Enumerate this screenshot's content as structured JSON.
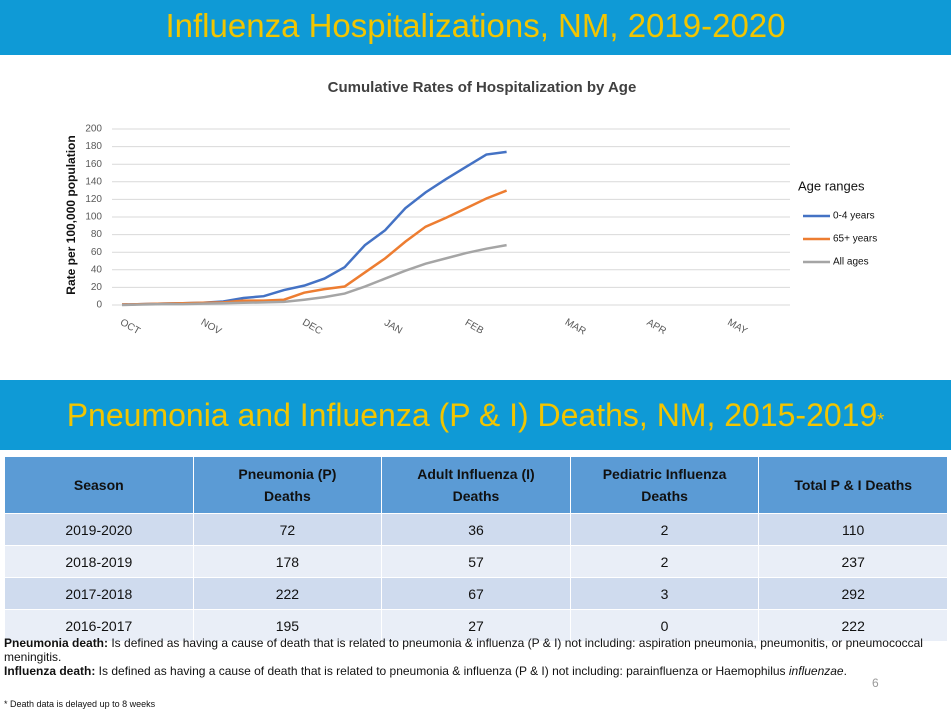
{
  "header": {
    "title": "Influenza Hospitalizations, NM, 2019-2020"
  },
  "chart_data": {
    "type": "line",
    "title": "Cumulative Rates of Hospitalization by Age",
    "y_label": "Rate per 100,000 population",
    "legend_title": "Age ranges",
    "legend": "right",
    "categories": [
      "OCT",
      null,
      null,
      null,
      "NOV",
      null,
      null,
      null,
      null,
      "DEC",
      null,
      null,
      null,
      "JAN",
      null,
      null,
      null,
      "FEB",
      null,
      null,
      null,
      null,
      "MAR",
      null,
      null,
      null,
      "APR",
      null,
      null,
      null,
      "MAY",
      null,
      null,
      null
    ],
    "series": [
      {
        "name": "0-4 years",
        "color": "#4472c4",
        "values": [
          0.5,
          1,
          1.5,
          2,
          2.5,
          4,
          8,
          10,
          17,
          22,
          30,
          43,
          68,
          85,
          110,
          128,
          143,
          157,
          171,
          174,
          null,
          null,
          null,
          null,
          null,
          null,
          null,
          null,
          null,
          null,
          null,
          null,
          null,
          null
        ]
      },
      {
        "name": "65+ years",
        "color": "#ed7d31",
        "values": [
          0.5,
          1,
          1.5,
          2,
          2.5,
          3,
          5,
          5,
          6,
          14,
          18,
          21,
          37,
          53,
          72,
          89,
          99,
          110,
          121,
          130,
          null,
          null,
          null,
          null,
          null,
          null,
          null,
          null,
          null,
          null,
          null,
          null,
          null,
          null
        ]
      },
      {
        "name": "All ages",
        "color": "#a5a5a5",
        "values": [
          0,
          0.5,
          1,
          1,
          1.5,
          2,
          2.5,
          3,
          3.5,
          6,
          9,
          13,
          21,
          30,
          39,
          47,
          53,
          59,
          64,
          68,
          null,
          null,
          null,
          null,
          null,
          null,
          null,
          null,
          null,
          null,
          null,
          null,
          null,
          null
        ]
      }
    ],
    "ylim": [
      0,
      200
    ],
    "yticks": [
      0,
      20,
      40,
      60,
      80,
      100,
      120,
      140,
      160,
      180,
      200
    ],
    "grid": true
  },
  "section": {
    "title": "Pneumonia and Influenza (P & I) Deaths, NM, 2015-2019",
    "mark": "*"
  },
  "table": {
    "header": [
      "Season",
      "Pneumonia (P) Deaths",
      "Adult Influenza (I) Deaths",
      "Pediatric Influenza Deaths",
      "Total P & I Deaths"
    ],
    "rows": [
      [
        "2019-2020",
        "72",
        "36",
        "2",
        "110"
      ],
      [
        "2018-2019",
        "178",
        "57",
        "2",
        "237"
      ],
      [
        "2017-2018",
        "222",
        "67",
        "3",
        "292"
      ],
      [
        "2016-2017",
        "195",
        "27",
        "0",
        "222"
      ]
    ]
  },
  "notes": [
    {
      "label": "Pneumonia death:",
      "text": " Is defined as having a cause of death that is related to pneumonia & influenza (P & I) not including: aspiration pneumonia, pneumonitis,  or pneumococcal meningitis."
    },
    {
      "label": "Influenza death:",
      "text": " Is defined as having a cause of death that is related to pneumonia & influenza (P & I) not including: parainfluenza or Haemophilus ",
      "italic": "influenzae",
      "end": "."
    }
  ],
  "page_number": "6",
  "footnote": "* Death data is delayed up to 8 weeks"
}
